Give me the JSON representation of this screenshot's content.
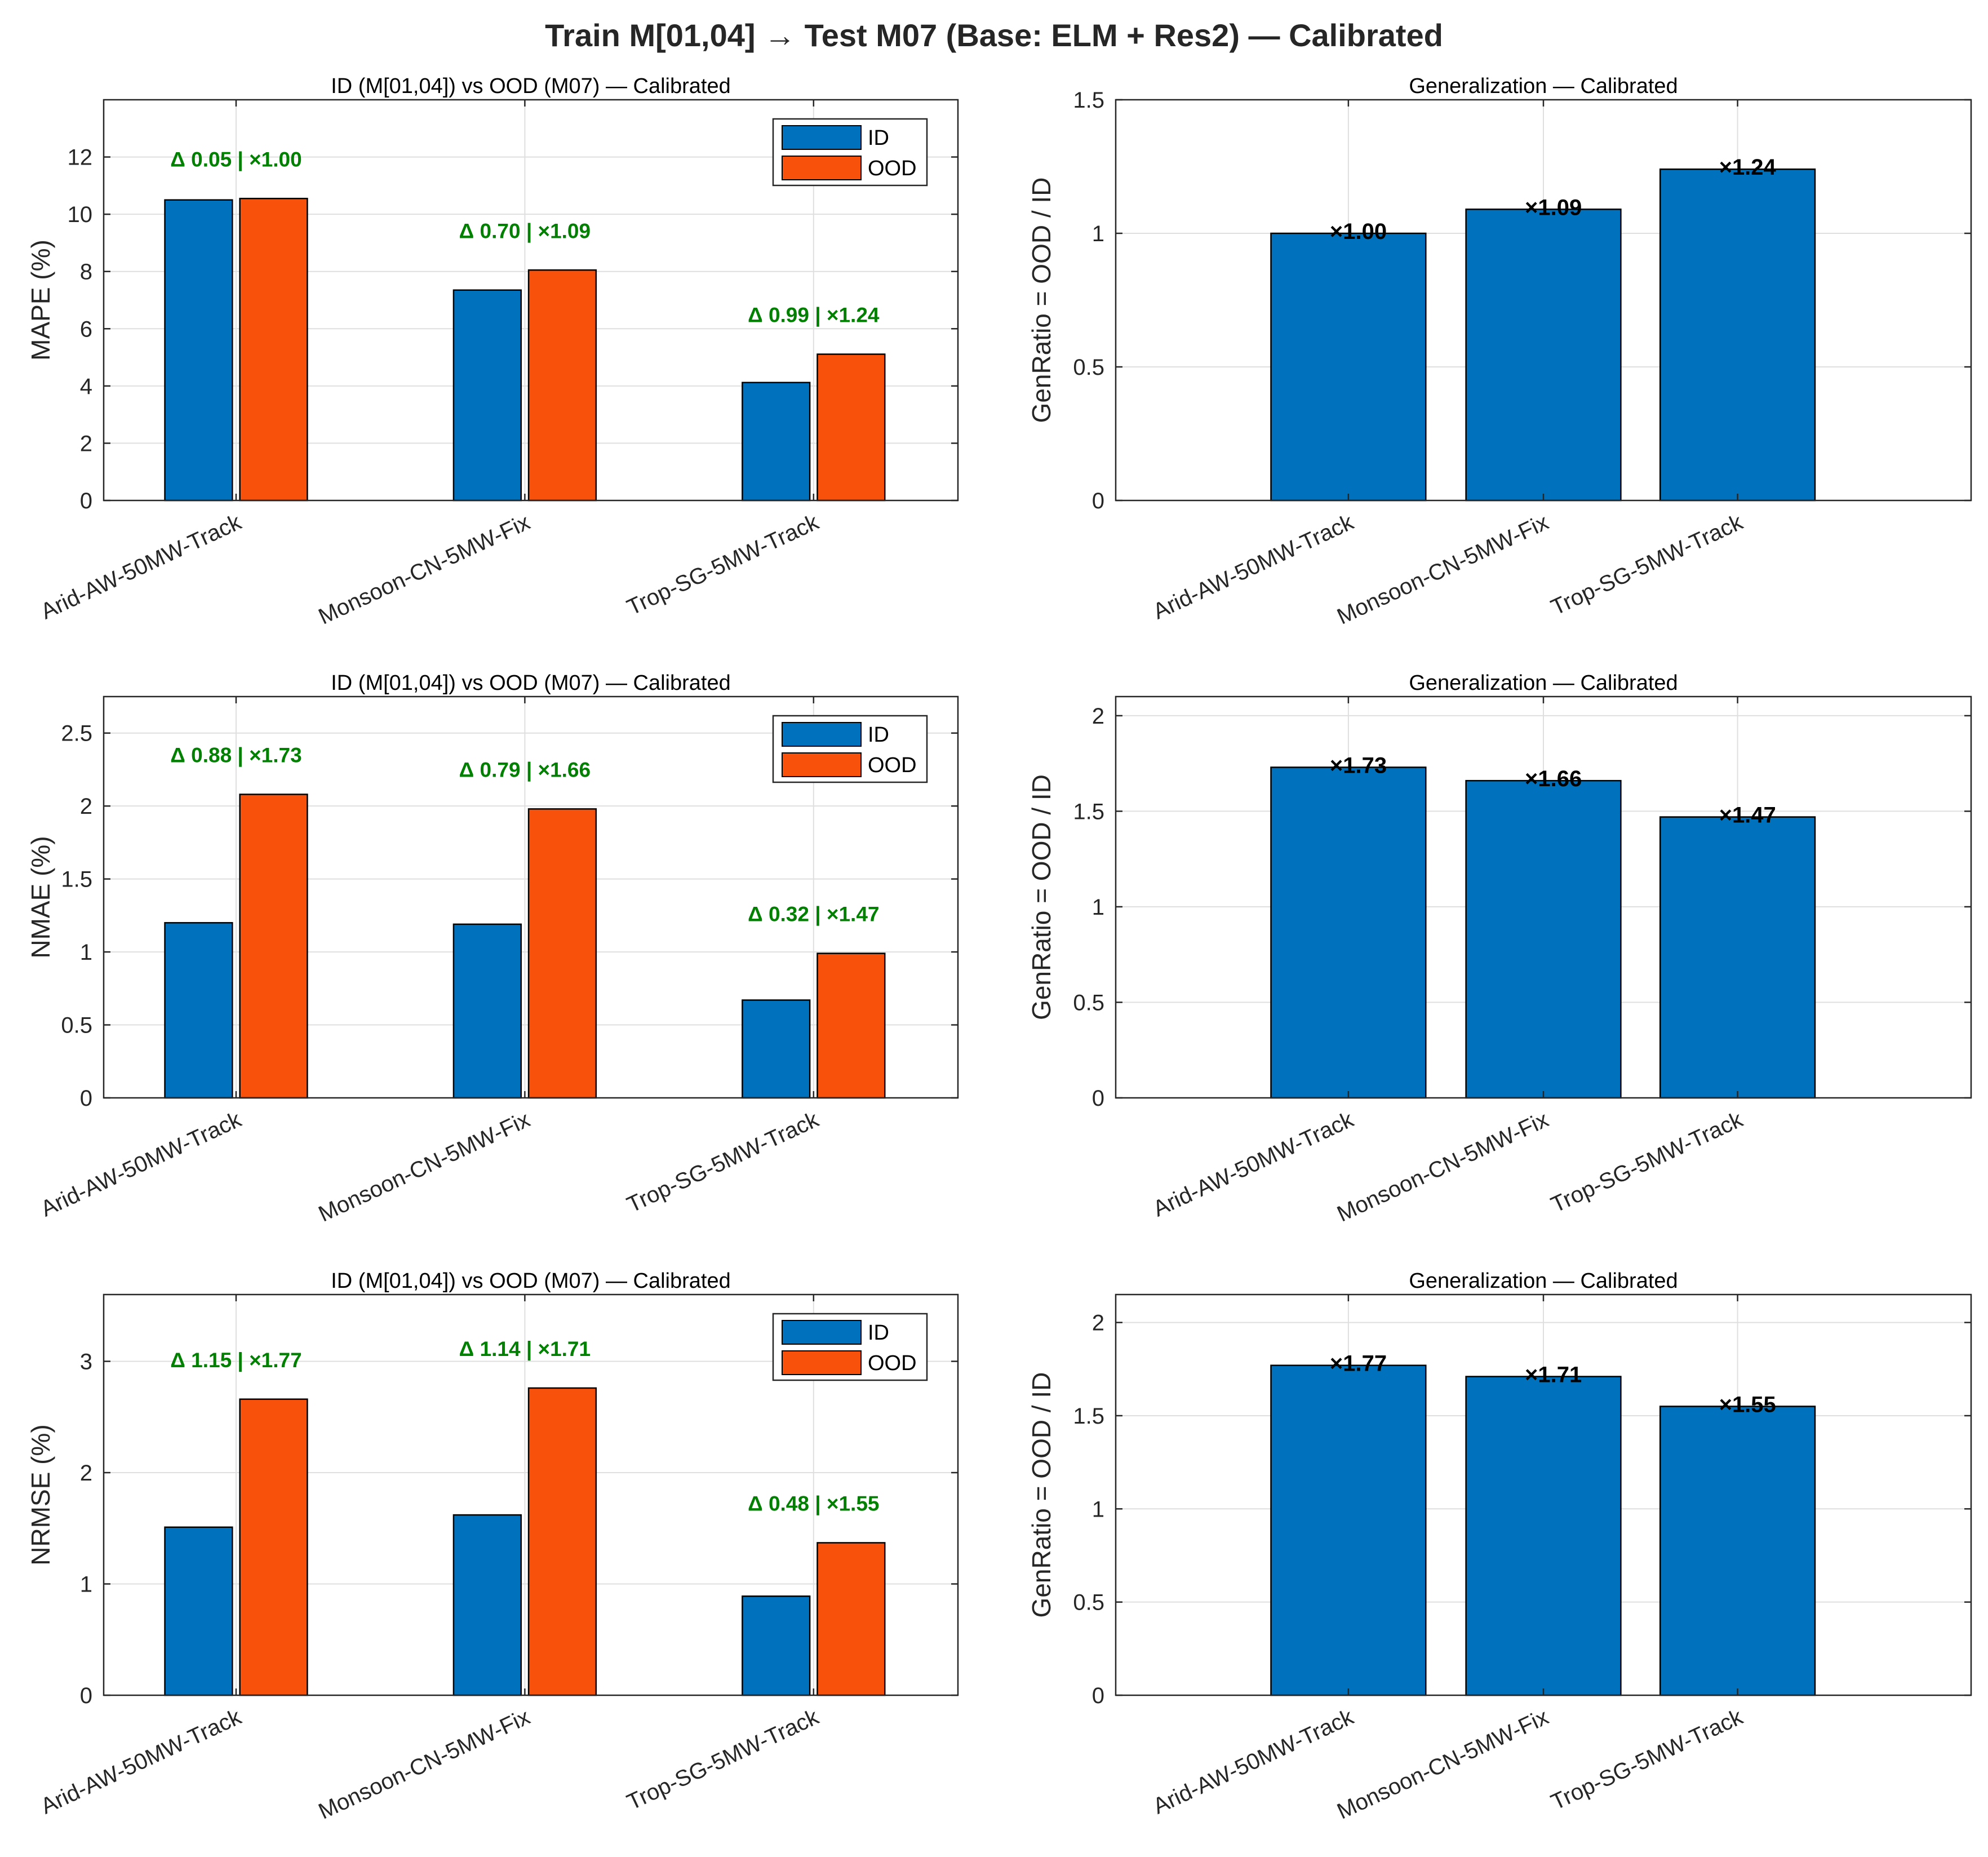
{
  "suptitle": "Train M[01,04] → Test M07 (Base: ELM + Res2) — Calibrated",
  "colors": {
    "id": "#0072BD",
    "ood": "#F8510C",
    "annotation": "#008000",
    "grid": "#DFDFDF",
    "axis": "#262626"
  },
  "chart_data": [
    {
      "type": "bar",
      "panel": "MAPE comparison",
      "title": "ID (M[01,04]) vs OOD (M07) — Calibrated",
      "xlabel": "",
      "ylabel": "MAPE (%)",
      "ylim": [
        0,
        14
      ],
      "yticks": [
        "0",
        "2",
        "4",
        "6",
        "8",
        "10",
        "12"
      ],
      "categories": [
        "Arid-AW-50MW-Track",
        "Monsoon-CN-5MW-Fix",
        "Trop-SG-5MW-Track"
      ],
      "series": [
        {
          "name": "ID",
          "values": [
            10.5,
            7.35,
            4.12
          ]
        },
        {
          "name": "OOD",
          "values": [
            10.55,
            8.05,
            5.11
          ]
        }
      ],
      "annotations": [
        "Δ 0.05 | ×1.00",
        "Δ 0.70 | ×1.09",
        "Δ 0.99 | ×1.24"
      ],
      "legend": [
        "ID",
        "OOD"
      ],
      "legend_position": "top-right",
      "grid": true
    },
    {
      "type": "bar",
      "panel": "MAPE generalization",
      "title": "Generalization — Calibrated",
      "xlabel": "",
      "ylabel": "GenRatio = OOD / ID",
      "ylim": [
        0,
        1.5
      ],
      "yticks": [
        "0",
        "0.5",
        "1",
        "1.5"
      ],
      "categories": [
        "Arid-AW-50MW-Track",
        "Monsoon-CN-5MW-Fix",
        "Trop-SG-5MW-Track"
      ],
      "values": [
        1.0,
        1.09,
        1.24
      ],
      "labels": [
        "×1.00",
        "×1.09",
        "×1.24"
      ],
      "grid": true
    },
    {
      "type": "bar",
      "panel": "NMAE comparison",
      "title": "ID (M[01,04]) vs OOD (M07) — Calibrated",
      "xlabel": "",
      "ylabel": "NMAE (%)",
      "ylim": [
        0,
        2.75
      ],
      "yticks": [
        "0",
        "0.5",
        "1",
        "1.5",
        "2",
        "2.5"
      ],
      "categories": [
        "Arid-AW-50MW-Track",
        "Monsoon-CN-5MW-Fix",
        "Trop-SG-5MW-Track"
      ],
      "series": [
        {
          "name": "ID",
          "values": [
            1.2,
            1.19,
            0.67
          ]
        },
        {
          "name": "OOD",
          "values": [
            2.08,
            1.98,
            0.99
          ]
        }
      ],
      "annotations": [
        "Δ 0.88 | ×1.73",
        "Δ 0.79 | ×1.66",
        "Δ 0.32 | ×1.47"
      ],
      "legend": [
        "ID",
        "OOD"
      ],
      "legend_position": "top-right",
      "grid": true
    },
    {
      "type": "bar",
      "panel": "NMAE generalization",
      "title": "Generalization — Calibrated",
      "xlabel": "",
      "ylabel": "GenRatio = OOD / ID",
      "ylim": [
        0,
        2.1
      ],
      "yticks": [
        "0",
        "0.5",
        "1",
        "1.5",
        "2"
      ],
      "categories": [
        "Arid-AW-50MW-Track",
        "Monsoon-CN-5MW-Fix",
        "Trop-SG-5MW-Track"
      ],
      "values": [
        1.73,
        1.66,
        1.47
      ],
      "labels": [
        "×1.73",
        "×1.66",
        "×1.47"
      ],
      "grid": true
    },
    {
      "type": "bar",
      "panel": "NRMSE comparison",
      "title": "ID (M[01,04]) vs OOD (M07) — Calibrated",
      "xlabel": "",
      "ylabel": "NRMSE (%)",
      "ylim": [
        0,
        3.6
      ],
      "yticks": [
        "0",
        "1",
        "2",
        "3"
      ],
      "categories": [
        "Arid-AW-50MW-Track",
        "Monsoon-CN-5MW-Fix",
        "Trop-SG-5MW-Track"
      ],
      "series": [
        {
          "name": "ID",
          "values": [
            1.51,
            1.62,
            0.89
          ]
        },
        {
          "name": "OOD",
          "values": [
            2.66,
            2.76,
            1.37
          ]
        }
      ],
      "annotations": [
        "Δ 1.15 | ×1.77",
        "Δ 1.14 | ×1.71",
        "Δ 0.48 | ×1.55"
      ],
      "legend": [
        "ID",
        "OOD"
      ],
      "legend_position": "top-right",
      "grid": true
    },
    {
      "type": "bar",
      "panel": "NRMSE generalization",
      "title": "Generalization — Calibrated",
      "xlabel": "",
      "ylabel": "GenRatio = OOD / ID",
      "ylim": [
        0,
        2.15
      ],
      "yticks": [
        "0",
        "0.5",
        "1",
        "1.5",
        "2"
      ],
      "categories": [
        "Arid-AW-50MW-Track",
        "Monsoon-CN-5MW-Fix",
        "Trop-SG-5MW-Track"
      ],
      "values": [
        1.77,
        1.71,
        1.55
      ],
      "labels": [
        "×1.77",
        "×1.71",
        "×1.55"
      ],
      "grid": true
    }
  ]
}
